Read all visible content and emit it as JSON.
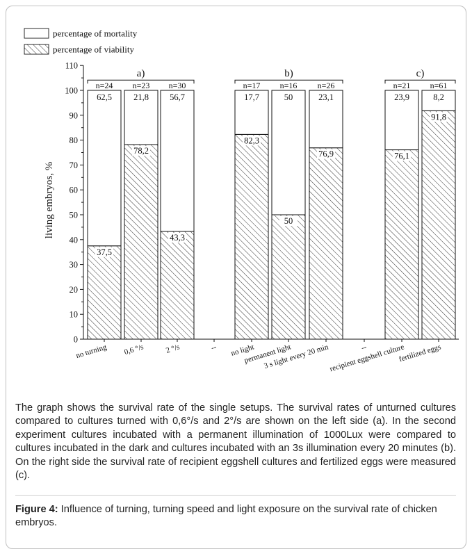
{
  "chart_data": {
    "type": "bar",
    "stacked": true,
    "ylabel": "living embryos, %",
    "ylim": [
      0,
      110
    ],
    "yticks": [
      0,
      10,
      20,
      30,
      40,
      50,
      60,
      70,
      80,
      90,
      100,
      110
    ],
    "legend": {
      "placement": "top-left",
      "items": [
        {
          "label": "percentage of mortality",
          "pattern": "white"
        },
        {
          "label": "percentage of viability",
          "pattern": "hatched"
        }
      ]
    },
    "groups": [
      {
        "label": "a)",
        "categories": [
          "no turning",
          "0,6 °/s",
          "2 °/s"
        ]
      },
      {
        "label": "b)",
        "categories": [
          "no light",
          "permanent light",
          "3 s light every 20 min"
        ]
      },
      {
        "label": "c)",
        "categories": [
          "recipient eggshell culture",
          "fertilized eggs"
        ]
      }
    ],
    "categories": [
      "no turning",
      "0,6 °/s",
      "2 °/s",
      "--",
      "no light",
      "permanent light",
      "3 s light every 20 min",
      "--",
      "recipient eggshell culture",
      "fertilized eggs"
    ],
    "bars": [
      {
        "category": "no turning",
        "n": "n=24",
        "viability": 37.5,
        "mortality": 62.5,
        "viability_label": "37,5",
        "mortality_label": "62,5"
      },
      {
        "category": "0,6 °/s",
        "n": "n=23",
        "viability": 78.2,
        "mortality": 21.8,
        "viability_label": "78,2",
        "mortality_label": "21,8"
      },
      {
        "category": "2 °/s",
        "n": "n=30",
        "viability": 43.3,
        "mortality": 56.7,
        "viability_label": "43,3",
        "mortality_label": "56,7"
      },
      {
        "category": "no light",
        "n": "n=17",
        "viability": 82.3,
        "mortality": 17.7,
        "viability_label": "82,3",
        "mortality_label": "17,7"
      },
      {
        "category": "permanent light",
        "n": "n=16",
        "viability": 50,
        "mortality": 50,
        "viability_label": "50",
        "mortality_label": "50"
      },
      {
        "category": "3 s light every 20 min",
        "n": "n=26",
        "viability": 76.9,
        "mortality": 23.1,
        "viability_label": "76,9",
        "mortality_label": "23,1"
      },
      {
        "category": "recipient eggshell culture",
        "n": "n=21",
        "viability": 76.1,
        "mortality": 23.9,
        "viability_label": "76,1",
        "mortality_label": "23,9"
      },
      {
        "category": "fertilized eggs",
        "n": "n=61",
        "viability": 91.8,
        "mortality": 8.2,
        "viability_label": "91,8",
        "mortality_label": "8,2"
      }
    ],
    "colors": {
      "bar_stroke": "#111111",
      "hatch": "#333333",
      "fill": "#ffffff"
    }
  },
  "caption": {
    "body": "The graph shows the survival rate of the single setups. The survival rates of unturned cultures compared to cultures turned with 0,6°/s and 2°/s are shown on the left side (a). In the second experiment cultures incubated with a permanent illumination of 1000Lux were compared to cultures incubated in the dark and cultures incubated with an 3s illumination every 20 minutes (b). On the right side the survival rate of recipient eggshell cultures and fertilized eggs were measured (c).",
    "figure_label": "Figure 4:",
    "figure_text": " Influence of turning, turning speed and light exposure on the survival rate of chicken embryos."
  }
}
